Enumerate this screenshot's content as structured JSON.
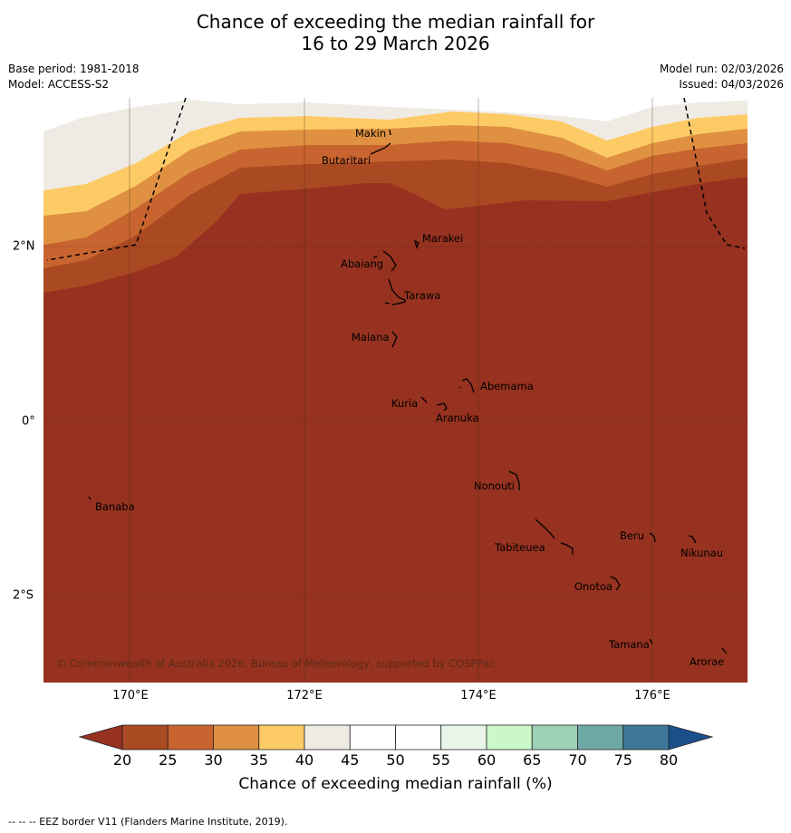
{
  "title": {
    "line1": "Chance of exceeding the median rainfall for",
    "line2": "16 to 29 March 2026"
  },
  "meta": {
    "base_period": "Base period: 1981-2018",
    "model": "Model: ACCESS-S2",
    "model_run": "Model run: 02/03/2026",
    "issued": "Issued: 04/03/2026"
  },
  "axes": {
    "lon_labels": [
      "170°E",
      "172°E",
      "174°E",
      "176°E"
    ],
    "lat_labels": [
      "2°N",
      "0°",
      "2°S"
    ]
  },
  "places": [
    "Makin",
    "Butaritari",
    "Marakei",
    "Abaiang",
    "Tarawa",
    "Maiana",
    "Abemama",
    "Kuria",
    "Aranuka",
    "Banaba",
    "Nonouti",
    "Beru",
    "Nikunau",
    "Tabiteuea",
    "Onotoa",
    "Tamana",
    "Arorae"
  ],
  "copyright": "© Commonwealth of Australia 2026, Bureau of Meteorology, supported by COSPPac",
  "colorbar": {
    "ticks": [
      "20",
      "25",
      "30",
      "35",
      "40",
      "45",
      "50",
      "55",
      "60",
      "65",
      "70",
      "75",
      "80"
    ],
    "colors": [
      "#aa4a22",
      "#c8642f",
      "#df9141",
      "#fdcb66",
      "#efebe4",
      "#ffffff",
      "#ffffff",
      "#eaf5ea",
      "#caf8c8",
      "#9ed0b6",
      "#6fa9a7",
      "#3d7696"
    ],
    "under_color": "#96321f",
    "over_color": "#1b4f8a",
    "label": "Chance of exceeding median rainfall (%)"
  },
  "map_colors": {
    "below_20": "#96321f",
    "c20_25": "#aa4a22",
    "c25_30": "#c8642f",
    "c30_35": "#df9141",
    "c35_40": "#fdcb66",
    "c40_45": "#efebe4"
  },
  "footer": "--  --  -- EEZ border V11 (Flanders Marine Institute, 2019)."
}
